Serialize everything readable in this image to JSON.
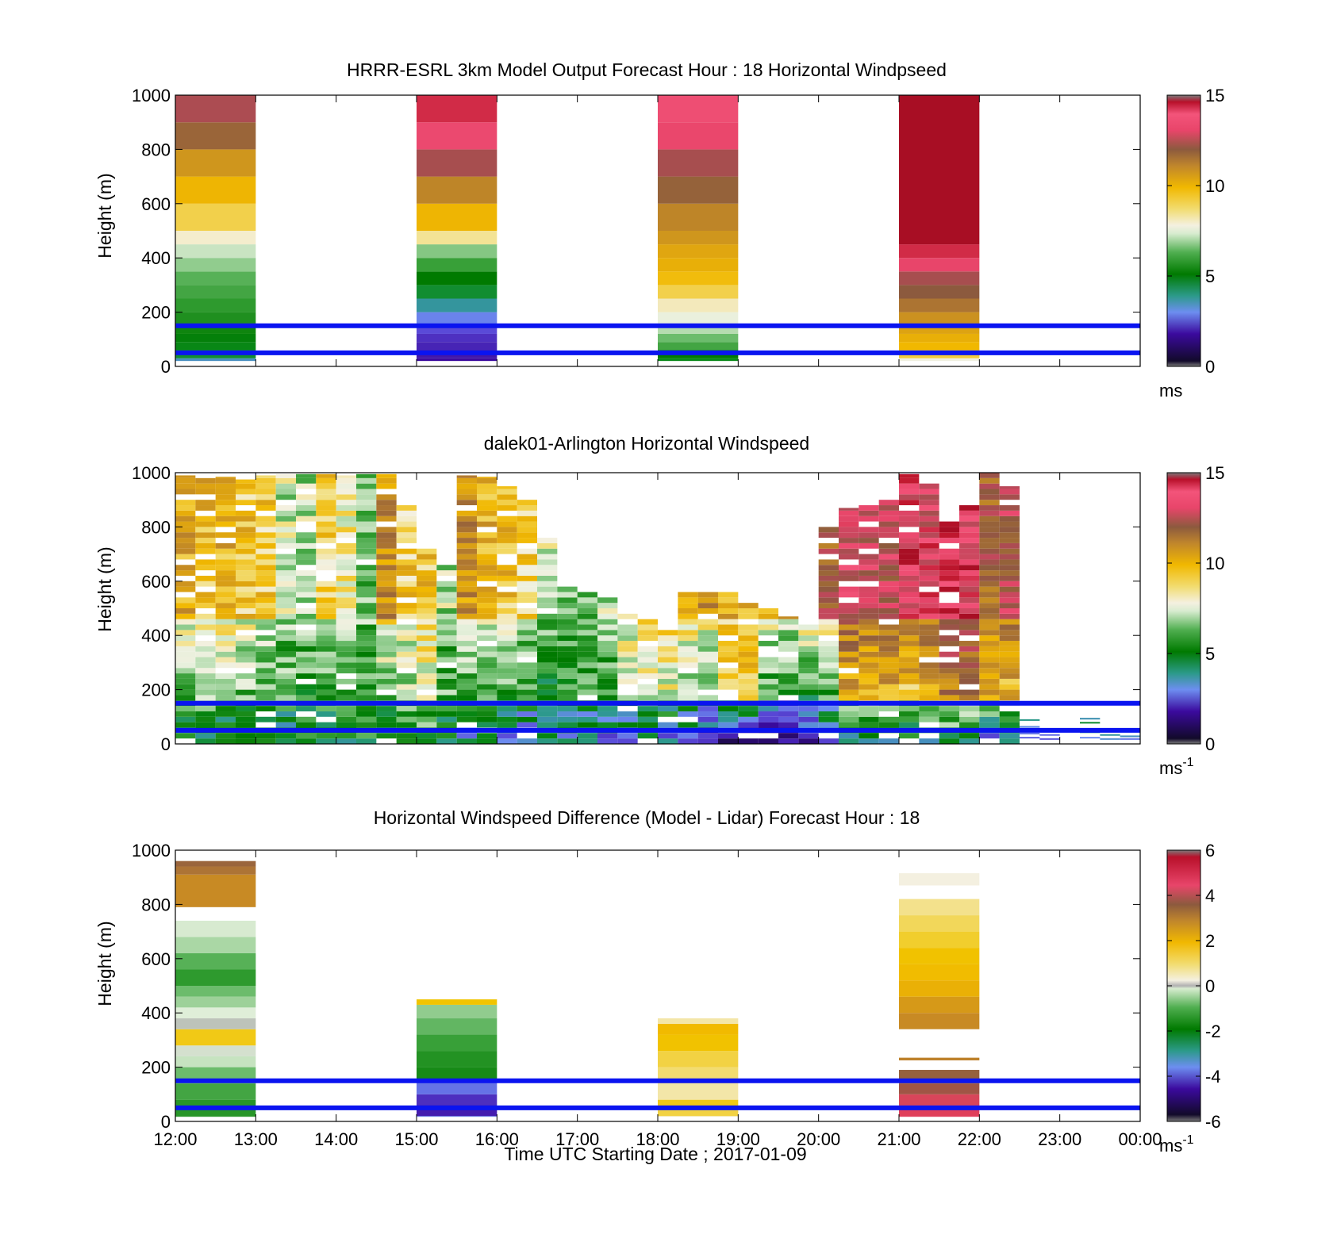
{
  "figure": {
    "xlabel": "Time UTC  Starting Date ; 2017-01-09"
  },
  "colors": {
    "guide_line": "#0a14f0",
    "axis": "#000000"
  },
  "chart_data": [
    {
      "type": "heatmap",
      "title": "HRRR-ESRL 3km Model Output   Forecast Hour : 18 Horizontal Windpseed",
      "ylabel": "Height (m)",
      "ylim": [
        0,
        1000
      ],
      "yticks": [
        0,
        200,
        400,
        600,
        800,
        1000
      ],
      "xlim_hours": [
        12,
        24
      ],
      "xtick_labels": [
        "12:00",
        "13:00",
        "14:00",
        "15:00",
        "16:00",
        "17:00",
        "18:00",
        "19:00",
        "20:00",
        "21:00",
        "22:00",
        "23:00",
        "00:00"
      ],
      "colorbar": {
        "min": 0,
        "max": 15,
        "ticks": [
          0,
          5,
          10,
          15
        ],
        "unit": "ms",
        "unit_sup": ""
      },
      "guide_lines_m": [
        150,
        50
      ],
      "columns": [
        {
          "start": "12:00",
          "end": "13:00",
          "heights": [
            30,
            60,
            90,
            120,
            150,
            200,
            250,
            300,
            350,
            400,
            450,
            500,
            600,
            700,
            800,
            900,
            1000
          ],
          "values": [
            3.5,
            4.4,
            4.6,
            4.8,
            5.2,
            5.4,
            5.6,
            5.8,
            6.0,
            6.5,
            7.0,
            7.8,
            8.6,
            9.3,
            10.3,
            11.5,
            12.5
          ]
        },
        {
          "start": "15:00",
          "end": "16:00",
          "heights": [
            30,
            60,
            90,
            120,
            150,
            200,
            250,
            300,
            350,
            400,
            450,
            500,
            600,
            700,
            800,
            900,
            1000
          ],
          "values": [
            1.6,
            1.8,
            2.0,
            2.2,
            2.6,
            3.1,
            3.8,
            4.4,
            5.0,
            5.7,
            6.4,
            8.1,
            9.3,
            10.7,
            12.4,
            13.6,
            14.5
          ]
        },
        {
          "start": "18:00",
          "end": "19:00",
          "heights": [
            30,
            60,
            90,
            120,
            150,
            200,
            250,
            300,
            350,
            400,
            450,
            500,
            600,
            700,
            800,
            900,
            1000
          ],
          "values": [
            4.5,
            5.0,
            5.8,
            6.2,
            6.8,
            7.4,
            7.9,
            8.6,
            9.1,
            9.5,
            9.8,
            10.3,
            10.7,
            11.6,
            12.4,
            13.5,
            13.8
          ]
        },
        {
          "start": "21:00",
          "end": "22:00",
          "heights": [
            30,
            60,
            90,
            120,
            150,
            200,
            250,
            300,
            350,
            400,
            450,
            1000
          ],
          "values": [
            7.6,
            8.7,
            9.2,
            9.5,
            9.9,
            10.4,
            11.1,
            11.8,
            12.4,
            13.4,
            14.5,
            15.5
          ]
        }
      ]
    },
    {
      "type": "heatmap",
      "title": "dalek01-Arlington  Horizontal Windspeed",
      "ylabel": "Height (m)",
      "ylim": [
        0,
        1000
      ],
      "yticks": [
        0,
        200,
        400,
        600,
        800,
        1000
      ],
      "xlim_hours": [
        12,
        24
      ],
      "xtick_labels": [
        "12:00",
        "13:00",
        "14:00",
        "15:00",
        "16:00",
        "17:00",
        "18:00",
        "19:00",
        "20:00",
        "21:00",
        "22:00",
        "23:00",
        "00:00"
      ],
      "colorbar": {
        "min": 0,
        "max": 15,
        "ticks": [
          0,
          5,
          10,
          15
        ],
        "unit": "ms",
        "unit_sup": "-1"
      },
      "guide_lines_m": [
        150,
        50
      ],
      "time_step_min": 15,
      "profiles": [
        {
          "time": "12:00",
          "low": 4.6,
          "mid": 6.2,
          "high": 9.6,
          "top_m": 990
        },
        {
          "time": "12:15",
          "low": 4.8,
          "mid": 6.6,
          "high": 9.2,
          "top_m": 990
        },
        {
          "time": "12:30",
          "low": 4.4,
          "mid": 6.3,
          "high": 9.4,
          "top_m": 985
        },
        {
          "time": "12:45",
          "low": 4.5,
          "mid": 6.0,
          "high": 8.9,
          "top_m": 975
        },
        {
          "time": "13:00",
          "low": 4.3,
          "mid": 5.6,
          "high": 8.8,
          "top_m": 990
        },
        {
          "time": "13:15",
          "low": 4.2,
          "mid": 5.8,
          "high": 7.0,
          "top_m": 995
        },
        {
          "time": "13:30",
          "low": 4.5,
          "mid": 5.4,
          "high": 6.8,
          "top_m": 995
        },
        {
          "time": "13:45",
          "low": 4.4,
          "mid": 5.6,
          "high": 8.6,
          "top_m": 995
        },
        {
          "time": "14:00",
          "low": 4.6,
          "mid": 5.4,
          "high": 7.8,
          "top_m": 990
        },
        {
          "time": "14:15",
          "low": 4.8,
          "mid": 5.9,
          "high": 6.3,
          "top_m": 995
        },
        {
          "time": "14:30",
          "low": 4.5,
          "mid": 6.1,
          "high": 10.2,
          "top_m": 995
        },
        {
          "time": "14:45",
          "low": 4.7,
          "mid": 6.6,
          "high": 8.8,
          "top_m": 880
        },
        {
          "time": "15:00",
          "low": 5.0,
          "mid": 7.2,
          "high": 9.0,
          "top_m": 720
        },
        {
          "time": "15:15",
          "low": 4.2,
          "mid": 5.8,
          "high": 6.8,
          "top_m": 660
        },
        {
          "time": "15:30",
          "low": 3.7,
          "mid": 5.5,
          "high": 10.2,
          "top_m": 990
        },
        {
          "time": "15:45",
          "low": 3.5,
          "mid": 5.8,
          "high": 9.4,
          "top_m": 985
        },
        {
          "time": "16:00",
          "low": 3.3,
          "mid": 5.6,
          "high": 9.0,
          "top_m": 950
        },
        {
          "time": "16:15",
          "low": 3.4,
          "mid": 5.2,
          "high": 8.6,
          "top_m": 900
        },
        {
          "time": "16:30",
          "low": 3.4,
          "mid": 5.0,
          "high": 7.0,
          "top_m": 760
        },
        {
          "time": "16:45",
          "low": 3.6,
          "mid": 5.2,
          "high": 6.6,
          "top_m": 580
        },
        {
          "time": "17:00",
          "low": 3.4,
          "mid": 5.4,
          "high": 6.4,
          "top_m": 560
        },
        {
          "time": "17:15",
          "low": 3.2,
          "mid": 5.6,
          "high": 6.8,
          "top_m": 540
        },
        {
          "time": "17:30",
          "low": 3.0,
          "mid": 6.8,
          "high": 8.4,
          "top_m": 480
        },
        {
          "time": "17:45",
          "low": 3.2,
          "mid": 7.4,
          "high": 9.0,
          "top_m": 460
        },
        {
          "time": "18:00",
          "low": 2.8,
          "mid": 7.2,
          "high": 9.3,
          "top_m": 420
        },
        {
          "time": "18:15",
          "low": 2.7,
          "mid": 6.4,
          "high": 9.6,
          "top_m": 560
        },
        {
          "time": "18:30",
          "low": 2.0,
          "mid": 5.6,
          "high": 10.3,
          "top_m": 560
        },
        {
          "time": "18:45",
          "low": 1.5,
          "mid": 7.8,
          "high": 9.6,
          "top_m": 560
        },
        {
          "time": "19:00",
          "low": 1.1,
          "mid": 8.6,
          "high": 9.4,
          "top_m": 520
        },
        {
          "time": "19:15",
          "low": 1.0,
          "mid": 5.2,
          "high": 9.8,
          "top_m": 500
        },
        {
          "time": "19:30",
          "low": 1.2,
          "mid": 4.8,
          "high": 10.6,
          "top_m": 470
        },
        {
          "time": "19:45",
          "low": 1.6,
          "mid": 4.6,
          "high": 11.6,
          "top_m": 450
        },
        {
          "time": "20:00",
          "low": 3.0,
          "mid": 5.4,
          "high": 11.8,
          "top_m": 820
        },
        {
          "time": "20:15",
          "low": 3.5,
          "mid": 9.4,
          "high": 13.2,
          "top_m": 870
        },
        {
          "time": "20:30",
          "low": 4.0,
          "mid": 9.0,
          "high": 13.0,
          "top_m": 880
        },
        {
          "time": "20:45",
          "low": 4.4,
          "mid": 9.6,
          "high": 12.6,
          "top_m": 900
        },
        {
          "time": "21:00",
          "low": 4.0,
          "mid": 8.8,
          "high": 13.8,
          "top_m": 995
        },
        {
          "time": "21:15",
          "low": 4.6,
          "mid": 9.4,
          "high": 13.4,
          "top_m": 960
        },
        {
          "time": "21:30",
          "low": 4.2,
          "mid": 11.0,
          "high": 14.4,
          "top_m": 820
        },
        {
          "time": "21:45",
          "low": 3.6,
          "mid": 10.8,
          "high": 13.8,
          "top_m": 880
        },
        {
          "time": "22:00",
          "low": 3.0,
          "mid": 9.4,
          "high": 11.6,
          "top_m": 1000
        },
        {
          "time": "22:15",
          "low": 3.2,
          "mid": 9.2,
          "high": 12.4,
          "top_m": 950
        }
      ],
      "sparse_after_2230": [
        {
          "time": "22:30",
          "heights": [
            85,
            60,
            35,
            20
          ],
          "values": [
            4.0,
            3.3,
            3.0,
            2.8
          ]
        },
        {
          "time": "22:45",
          "heights": [
            45,
            30,
            15
          ],
          "values": [
            3.1,
            2.9,
            2.7
          ]
        },
        {
          "time": "23:15",
          "heights": [
            90,
            75,
            40,
            20
          ],
          "values": [
            3.6,
            4.4,
            4.0,
            3.2
          ]
        },
        {
          "time": "23:30",
          "heights": [
            30,
            15
          ],
          "values": [
            3.8,
            3.4
          ]
        },
        {
          "time": "23:45",
          "heights": [
            25,
            15
          ],
          "values": [
            3.5,
            3.0
          ]
        }
      ]
    },
    {
      "type": "heatmap",
      "title": "Horizontal Windspeed Difference (Model - Lidar) Forecast Hour : 18",
      "ylabel": "Height (m)",
      "ylim": [
        0,
        1000
      ],
      "yticks": [
        0,
        200,
        400,
        600,
        800,
        1000
      ],
      "xlim_hours": [
        12,
        24
      ],
      "xtick_labels": [
        "12:00",
        "13:00",
        "14:00",
        "15:00",
        "16:00",
        "17:00",
        "18:00",
        "19:00",
        "20:00",
        "21:00",
        "22:00",
        "23:00",
        "00:00"
      ],
      "colorbar": {
        "min": -6,
        "max": 6,
        "ticks": [
          -6,
          -4,
          -2,
          0,
          2,
          4,
          6
        ],
        "unit": "ms",
        "unit_sup": "-1"
      },
      "guide_lines_m": [
        150,
        50
      ],
      "columns": [
        {
          "start": "12:00",
          "end": "13:00",
          "heights": [
            20,
            80,
            140,
            200,
            240,
            280,
            340,
            380,
            420,
            460,
            500,
            560,
            620,
            680,
            740,
            790,
            910,
            940,
            960
          ],
          "values": [
            -2.4,
            -2.3,
            -2.0,
            -1.6,
            -0.8,
            -0.4,
            1.1,
            -0.2,
            -0.5,
            -1.2,
            -1.6,
            -2.2,
            -1.8,
            -1.1,
            -0.6,
            null,
            2.4,
            2.9,
            3.3
          ]
        },
        {
          "start": "15:00",
          "end": "16:00",
          "heights": [
            20,
            60,
            100,
            150,
            200,
            260,
            320,
            380,
            430,
            450
          ],
          "values": [
            -4.1,
            -5.0,
            -4.8,
            -4.2,
            -2.6,
            -2.4,
            -2.1,
            -1.7,
            -1.3,
            1.2
          ]
        },
        {
          "start": "18:00",
          "end": "19:00",
          "heights": [
            20,
            40,
            80,
            140,
            200,
            260,
            320,
            360,
            380
          ],
          "values": [
            0.4,
            0.9,
            1.1,
            0.5,
            0.7,
            0.9,
            1.3,
            1.7,
            0.5
          ]
        },
        {
          "start": "21:00",
          "end": "22:00",
          "heights": [
            20,
            60,
            100,
            140,
            190,
            225,
            235,
            340,
            400,
            460,
            520,
            580,
            640,
            700,
            760,
            820,
            870,
            915,
            930
          ],
          "values": [
            5.3,
            4.8,
            4.4,
            3.8,
            3.4,
            null,
            2.6,
            null,
            2.4,
            2.2,
            1.9,
            1.6,
            1.3,
            1.0,
            0.8,
            0.6,
            null,
            0.3,
            null
          ]
        }
      ]
    }
  ]
}
